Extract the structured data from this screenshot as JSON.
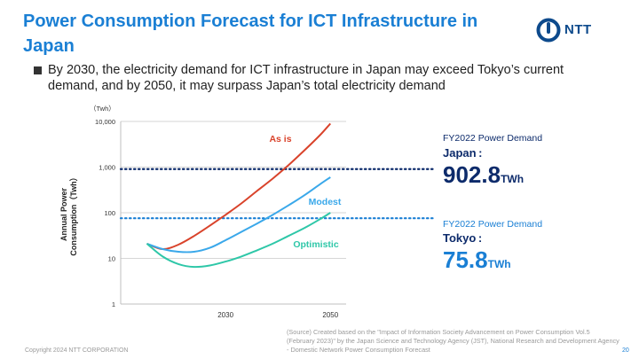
{
  "slide": {
    "title": "Power Consumption Forecast for ICT Infrastructure in Japan",
    "logo_text": "NTT",
    "bullet": "By 2030, the electricity demand for ICT infrastructure in Japan may exceed Tokyo’s current demand, and by 2050, it may surpass Japan’s total electricity demand",
    "source": "(Source)   Created based on the \"Impact of Information Society Advancement on Power Consumption Vol.5 (February 2023)\" by the Japan Science and Technology Agency (JST), National Research and Development Agency - Domestic Network Power Consumption Forecast",
    "copyright": "Copyright 2024 NTT CORPORATION",
    "page_number": "20"
  },
  "callouts": {
    "japan": {
      "label": "FY2022  Power Demand",
      "country": "Japan :",
      "value": "902.8",
      "unit": "TWh",
      "color": "#0d2b6b"
    },
    "tokyo": {
      "label": "FY2022  Power Demand",
      "country": "Tokyo :",
      "value": "75.8",
      "unit": "TWh",
      "color": "#1a7fd4"
    }
  },
  "chart_data": {
    "type": "line",
    "y_scale": "log",
    "unit_label": "（Twh）",
    "ylabel": "Annual Power Consumption（Twh）",
    "ylim": [
      1,
      10000
    ],
    "y_ticks": [
      "1",
      "10",
      "100",
      "1,000",
      "10,000"
    ],
    "y_tick_values": [
      1,
      10,
      100,
      1000,
      10000
    ],
    "xlim": [
      2010,
      2053
    ],
    "x_ticks": [
      "2030",
      "2050"
    ],
    "x_tick_values": [
      2030,
      2050
    ],
    "series": [
      {
        "name": "As is",
        "color": "#d9432b",
        "x": [
          2015,
          2018,
          2021,
          2024,
          2027,
          2030,
          2033,
          2036,
          2039,
          2042,
          2045,
          2048,
          2050
        ],
        "y": [
          21,
          16,
          20,
          31,
          52,
          90,
          160,
          300,
          560,
          1100,
          2300,
          5000,
          9000
        ]
      },
      {
        "name": "Modest",
        "color": "#3aa8ea",
        "x": [
          2015,
          2018,
          2021,
          2024,
          2027,
          2030,
          2033,
          2036,
          2039,
          2042,
          2045,
          2048,
          2050
        ],
        "y": [
          21,
          16,
          14,
          14,
          17,
          25,
          38,
          58,
          90,
          145,
          240,
          420,
          600
        ]
      },
      {
        "name": "Optimistic",
        "color": "#2ec7a8",
        "x": [
          2015,
          2018,
          2021,
          2024,
          2027,
          2030,
          2033,
          2036,
          2039,
          2042,
          2045,
          2048,
          2050
        ],
        "y": [
          21,
          11,
          7.5,
          6.5,
          7,
          8.5,
          11,
          15,
          21,
          31,
          46,
          72,
          100
        ]
      }
    ],
    "reference_lines": [
      {
        "name": "Japan FY2022",
        "value": 902.8,
        "color": "#0d2b6b"
      },
      {
        "name": "Tokyo FY2022",
        "value": 75.8,
        "color": "#1a7fd4"
      }
    ]
  }
}
